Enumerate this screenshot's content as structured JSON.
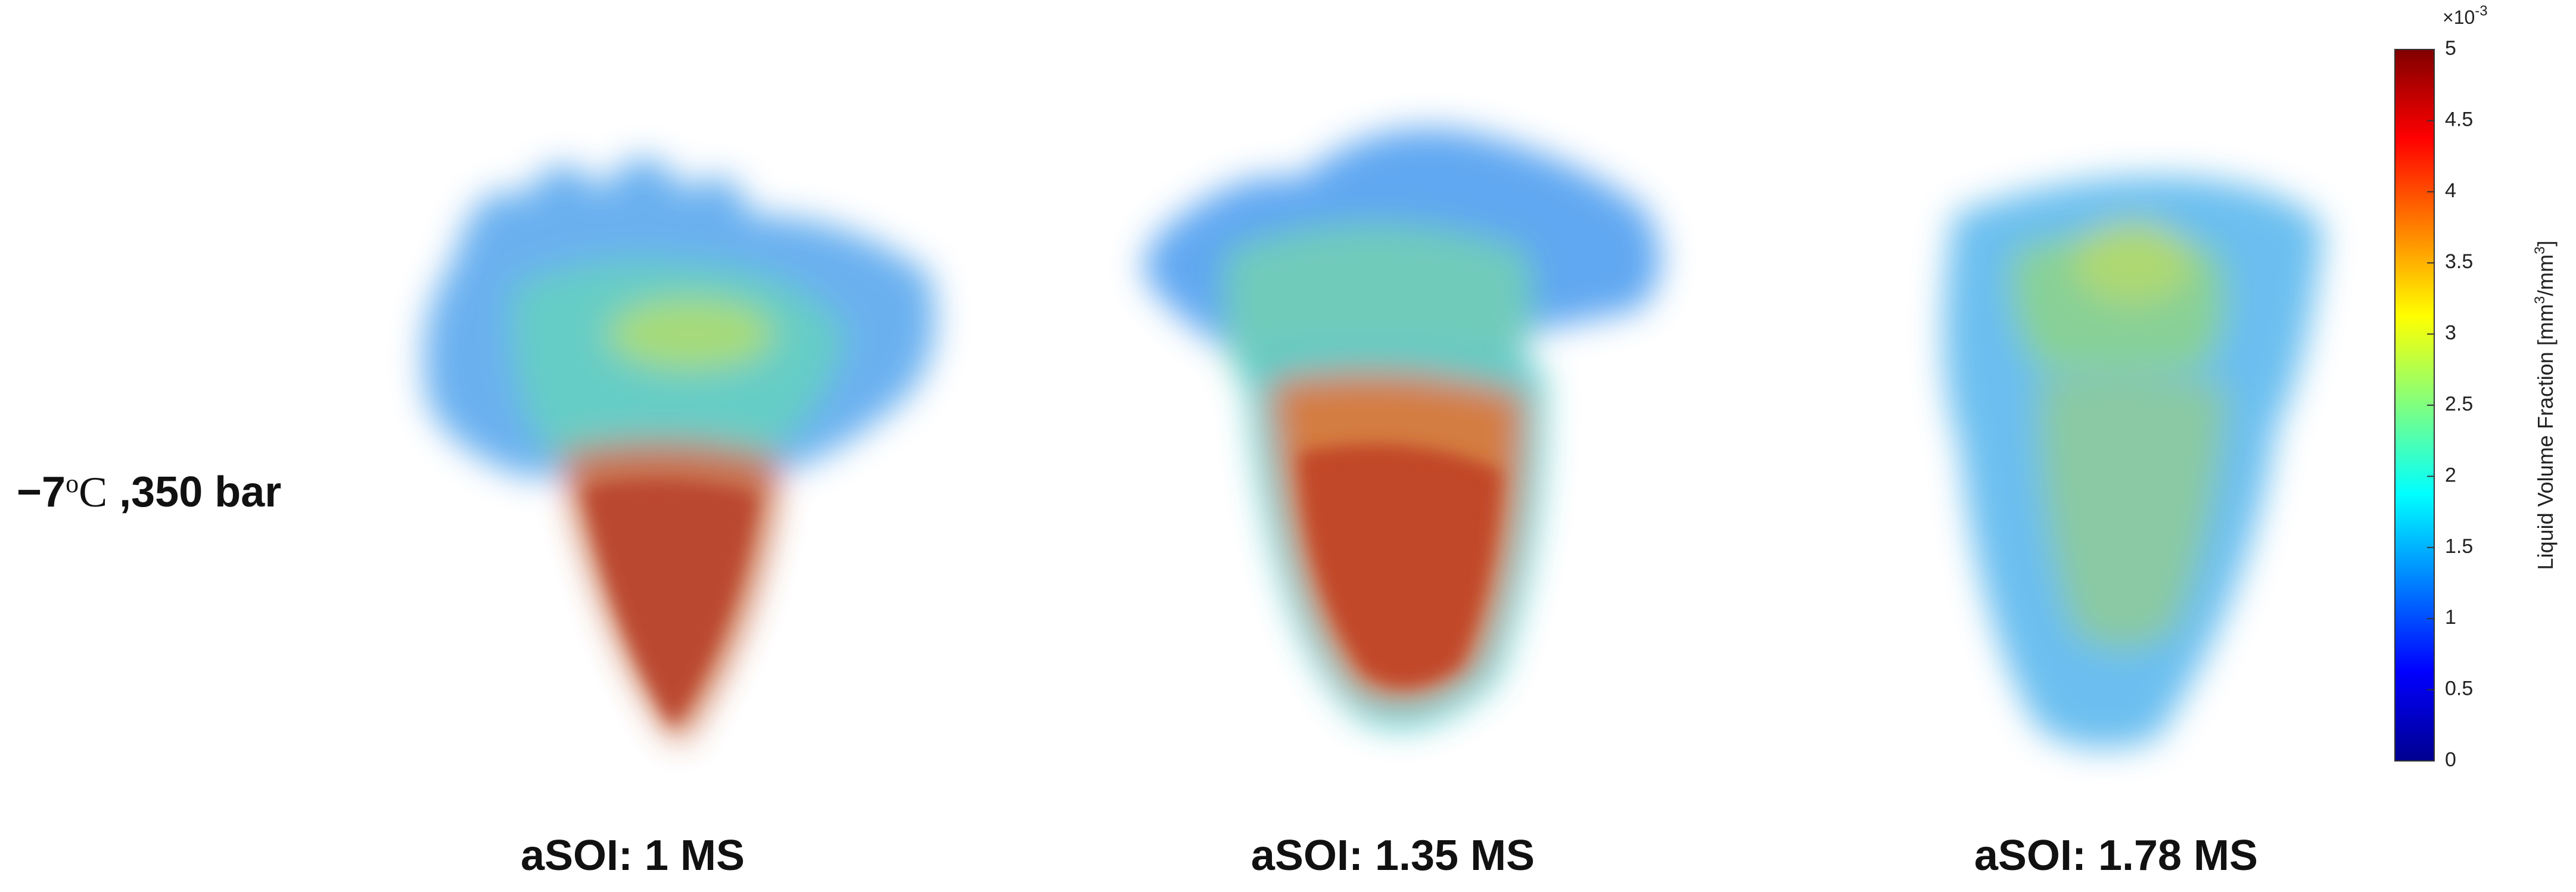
{
  "condition": {
    "parts": [
      "−7",
      "o",
      "C",
      " ,350 bar"
    ]
  },
  "panels": [
    {
      "label": "aSOI: 1 MS"
    },
    {
      "label": "aSOI: 1.35 MS"
    },
    {
      "label": "aSOI: 1.78 MS"
    }
  ],
  "colorbar": {
    "multiplier": {
      "base": "×10",
      "exponent": "-3"
    },
    "label": {
      "main": "Liquid Volume Fraction [mm",
      "sup1": "3",
      "mid": "/mm",
      "sup2": "3",
      "end": "]"
    },
    "range": [
      0,
      5
    ],
    "ticks": [
      0,
      0.5,
      1,
      1.5,
      2,
      2.5,
      3,
      3.5,
      4,
      4.5,
      5
    ]
  }
}
